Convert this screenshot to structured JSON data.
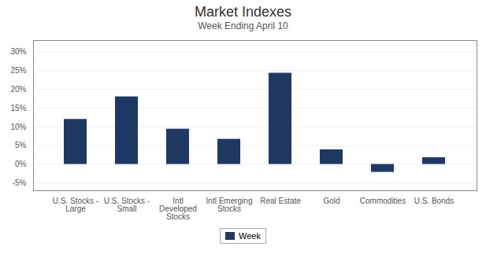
{
  "chart_data": {
    "type": "bar",
    "title": "Market Indexes",
    "subtitle": "Week Ending April 10",
    "categories": [
      "U.S. Stocks -\nLarge",
      "U.S. Stocks -\nSmall",
      "Intl\nDeveloped\nStocks",
      "Intl Emerging\nStocks",
      "Real Estate",
      "Gold",
      "Commodities",
      "U.S. Bonds"
    ],
    "series": [
      {
        "name": "Week",
        "color": "#1F3864",
        "values": [
          0.12,
          0.18,
          0.094,
          0.067,
          0.243,
          0.039,
          -0.021,
          0.018
        ]
      }
    ],
    "ylim": [
      -0.07,
      0.33
    ],
    "yticks": [
      {
        "value": -0.05,
        "label": "-5%"
      },
      {
        "value": 0.0,
        "label": "0%"
      },
      {
        "value": 0.05,
        "label": "5%"
      },
      {
        "value": 0.1,
        "label": "10%"
      },
      {
        "value": 0.15,
        "label": "15%"
      },
      {
        "value": 0.2,
        "label": "20%"
      },
      {
        "value": 0.25,
        "label": "25%"
      },
      {
        "value": 0.3,
        "label": "30%"
      }
    ],
    "grid": true,
    "legend": "bottom"
  }
}
